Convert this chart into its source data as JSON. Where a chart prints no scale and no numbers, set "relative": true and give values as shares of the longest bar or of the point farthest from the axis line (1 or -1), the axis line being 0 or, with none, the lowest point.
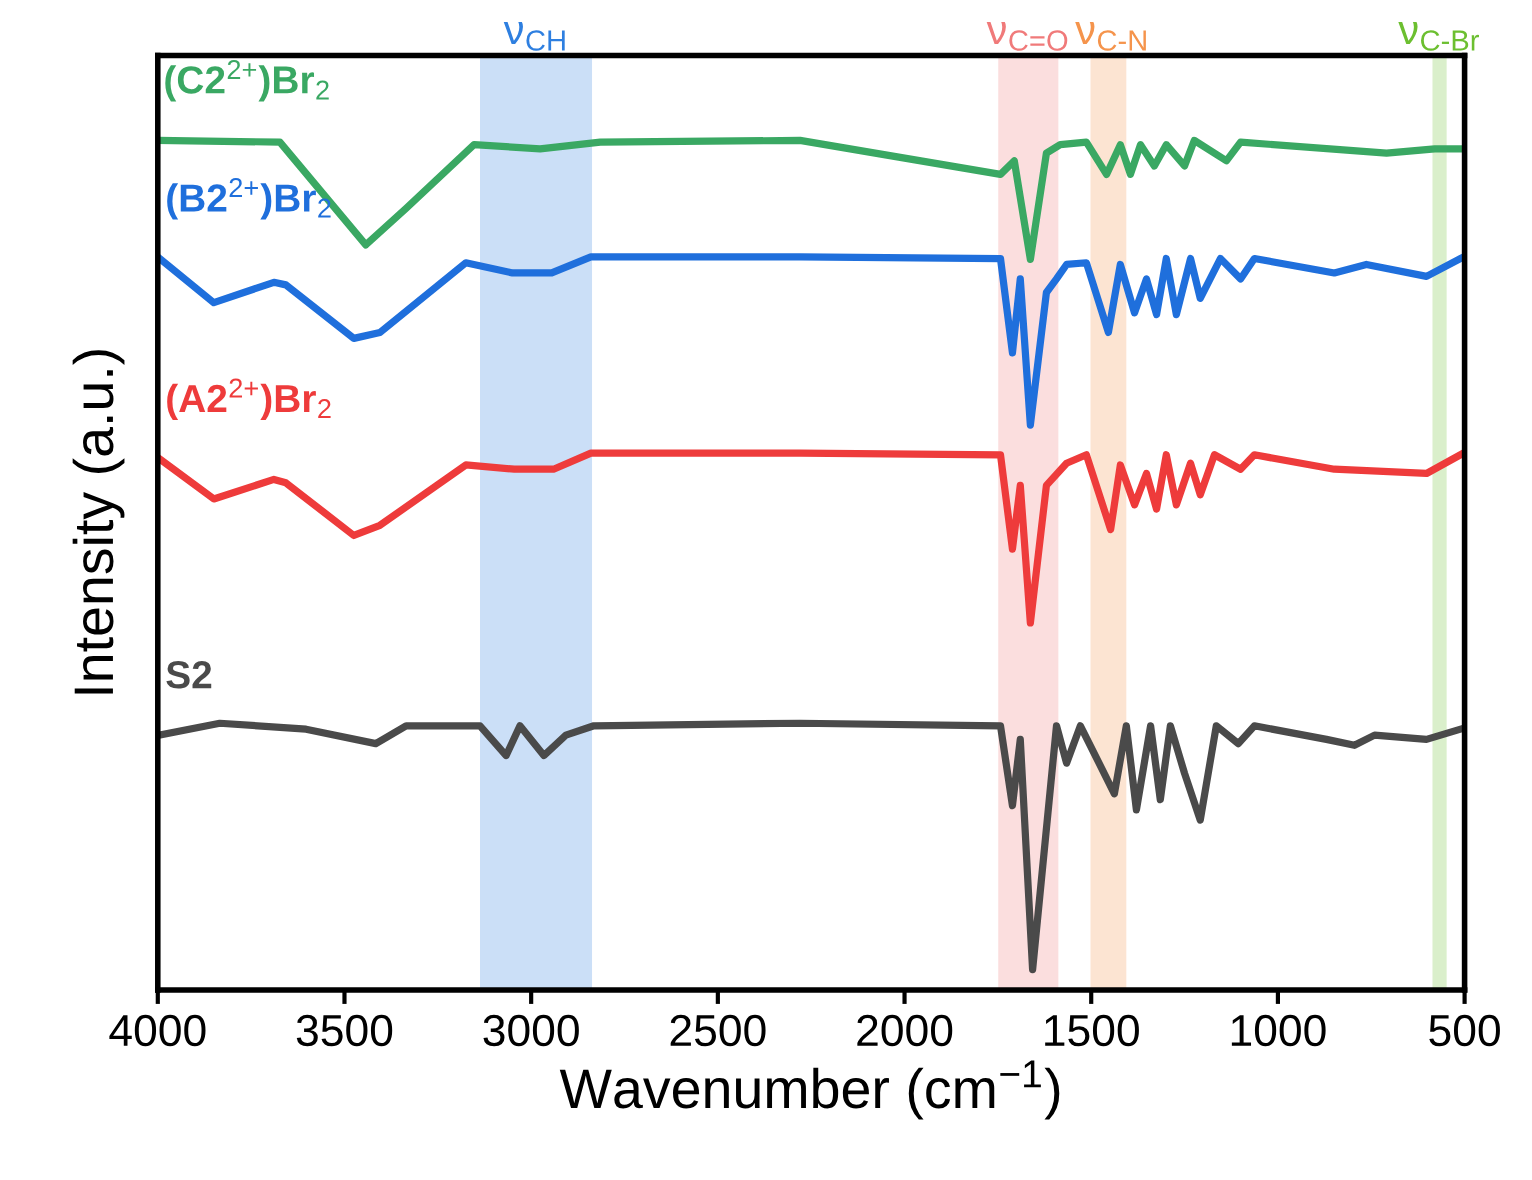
{
  "chart_data": {
    "type": "line",
    "relative": true,
    "xlabel": "Wavenumber (cm$^{−1}$)",
    "ylabel": "Intensity (a.u.)",
    "xlim": [
      4000,
      500
    ],
    "xticks": [
      4000,
      3500,
      3000,
      2500,
      2000,
      1500,
      1000,
      500
    ],
    "tick_labels": "x",
    "grid": false,
    "legend": false,
    "series": [
      {
        "name": "(C2$^{2+}$)Br$_{2}$",
        "color": "#3aa863",
        "x": [
          4000,
          3673,
          3443,
          3335,
          3153,
          2976,
          2815,
          2280,
          1743,
          1706,
          1663,
          1620,
          1583,
          1513,
          1459,
          1422,
          1395,
          1368,
          1331,
          1299,
          1250,
          1224,
          1138,
          1100,
          709,
          580,
          511
        ],
        "values": [
          1.0,
          0.998,
          0.877,
          0.92,
          0.995,
          0.99,
          0.998,
          1.0,
          0.96,
          0.976,
          0.86,
          0.985,
          0.995,
          0.998,
          0.96,
          0.995,
          0.96,
          0.995,
          0.97,
          0.995,
          0.97,
          1.0,
          0.976,
          0.998,
          0.985,
          0.99,
          0.99
        ]
      },
      {
        "name": "(B2$^{2+}$)Br$_{2}$",
        "color": "#1f6fdc",
        "x": [
          3995,
          3850,
          3689,
          3657,
          3475,
          3405,
          3175,
          3050,
          2945,
          2840,
          2280,
          1743,
          1711,
          1690,
          1663,
          1620,
          1593,
          1566,
          1513,
          1454,
          1422,
          1384,
          1352,
          1325,
          1299,
          1272,
          1234,
          1208,
          1154,
          1100,
          1063,
          849,
          763,
          602,
          511
        ],
        "values": [
          0.861,
          0.809,
          0.833,
          0.83,
          0.767,
          0.774,
          0.856,
          0.844,
          0.844,
          0.863,
          0.863,
          0.861,
          0.75,
          0.837,
          0.665,
          0.821,
          0.837,
          0.854,
          0.856,
          0.774,
          0.854,
          0.797,
          0.837,
          0.795,
          0.861,
          0.795,
          0.861,
          0.814,
          0.861,
          0.837,
          0.861,
          0.844,
          0.854,
          0.84,
          0.861
        ]
      },
      {
        "name": "(A2$^{2+}$)Br$_{2}$",
        "color": "#ee3b3b",
        "x": [
          3995,
          3850,
          3689,
          3657,
          3475,
          3405,
          3175,
          3045,
          2940,
          2840,
          2280,
          1743,
          1711,
          1690,
          1663,
          1620,
          1566,
          1513,
          1448,
          1422,
          1384,
          1352,
          1325,
          1299,
          1272,
          1234,
          1208,
          1170,
          1100,
          1063,
          849,
          602,
          511
        ],
        "values": [
          0.625,
          0.578,
          0.601,
          0.597,
          0.535,
          0.547,
          0.618,
          0.613,
          0.613,
          0.632,
          0.632,
          0.63,
          0.519,
          0.594,
          0.432,
          0.594,
          0.62,
          0.63,
          0.542,
          0.618,
          0.571,
          0.608,
          0.566,
          0.63,
          0.571,
          0.62,
          0.583,
          0.63,
          0.613,
          0.63,
          0.613,
          0.608,
          0.63
        ]
      },
      {
        "name": "S2",
        "color": "#4a4a4a",
        "x": [
          3995,
          3834,
          3603,
          3416,
          3335,
          3137,
          3067,
          3030,
          2966,
          2907,
          2832,
          2280,
          1743,
          1711,
          1690,
          1657,
          1593,
          1566,
          1529,
          1438,
          1406,
          1379,
          1341,
          1315,
          1288,
          1250,
          1208,
          1165,
          1106,
          1063,
          870,
          795,
          741,
          602,
          511
        ],
        "values": [
          0.3,
          0.314,
          0.307,
          0.29,
          0.311,
          0.311,
          0.276,
          0.311,
          0.276,
          0.3,
          0.311,
          0.314,
          0.311,
          0.217,
          0.295,
          0.024,
          0.311,
          0.267,
          0.311,
          0.231,
          0.311,
          0.212,
          0.311,
          0.224,
          0.311,
          0.255,
          0.2,
          0.311,
          0.29,
          0.311,
          0.295,
          0.288,
          0.3,
          0.295,
          0.307
        ]
      }
    ],
    "bands": [
      {
        "axis": "x",
        "from": 3137,
        "to": 2837,
        "label": "ν$_{CH}$",
        "color": "#2e7fe0"
      },
      {
        "axis": "x",
        "from": 1749,
        "to": 1588,
        "label": "ν$_{C=O}$",
        "color": "#f07a7a"
      },
      {
        "axis": "x",
        "from": 1502,
        "to": 1406,
        "label": "ν$_{C-N}$",
        "color": "#f5944c"
      },
      {
        "axis": "x",
        "from": 586,
        "to": 548,
        "label": "ν$_{C-Br}$",
        "color": "#6cbf30"
      }
    ]
  }
}
